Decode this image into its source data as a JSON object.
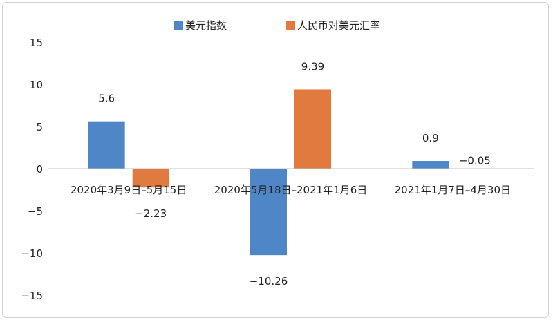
{
  "chart_data": {
    "type": "bar",
    "title": "",
    "xlabel": "",
    "ylabel": "",
    "ylim": [
      -15,
      15
    ],
    "yticks": [
      15,
      10,
      5,
      0,
      -5,
      -10,
      -15
    ],
    "ytick_labels": [
      "15",
      "10",
      "5",
      "0",
      "−5",
      "−10",
      "−15"
    ],
    "categories": [
      "2020年3月9日–5月15日",
      "2020年5月18日–2021年1月6日",
      "2021年1月7日–4月30日"
    ],
    "series": [
      {
        "name": "美元指数",
        "color": "#4f86c6",
        "values": [
          5.6,
          -10.26,
          0.9
        ],
        "labels": [
          "5.6",
          "−10.26",
          "0.9"
        ]
      },
      {
        "name": "人民币对美元汇率",
        "color": "#e07a3f",
        "values": [
          -2.23,
          9.39,
          -0.05
        ],
        "labels": [
          "−2.23",
          "9.39",
          "−0.05"
        ]
      }
    ],
    "legend_position": "top",
    "grid": false
  }
}
